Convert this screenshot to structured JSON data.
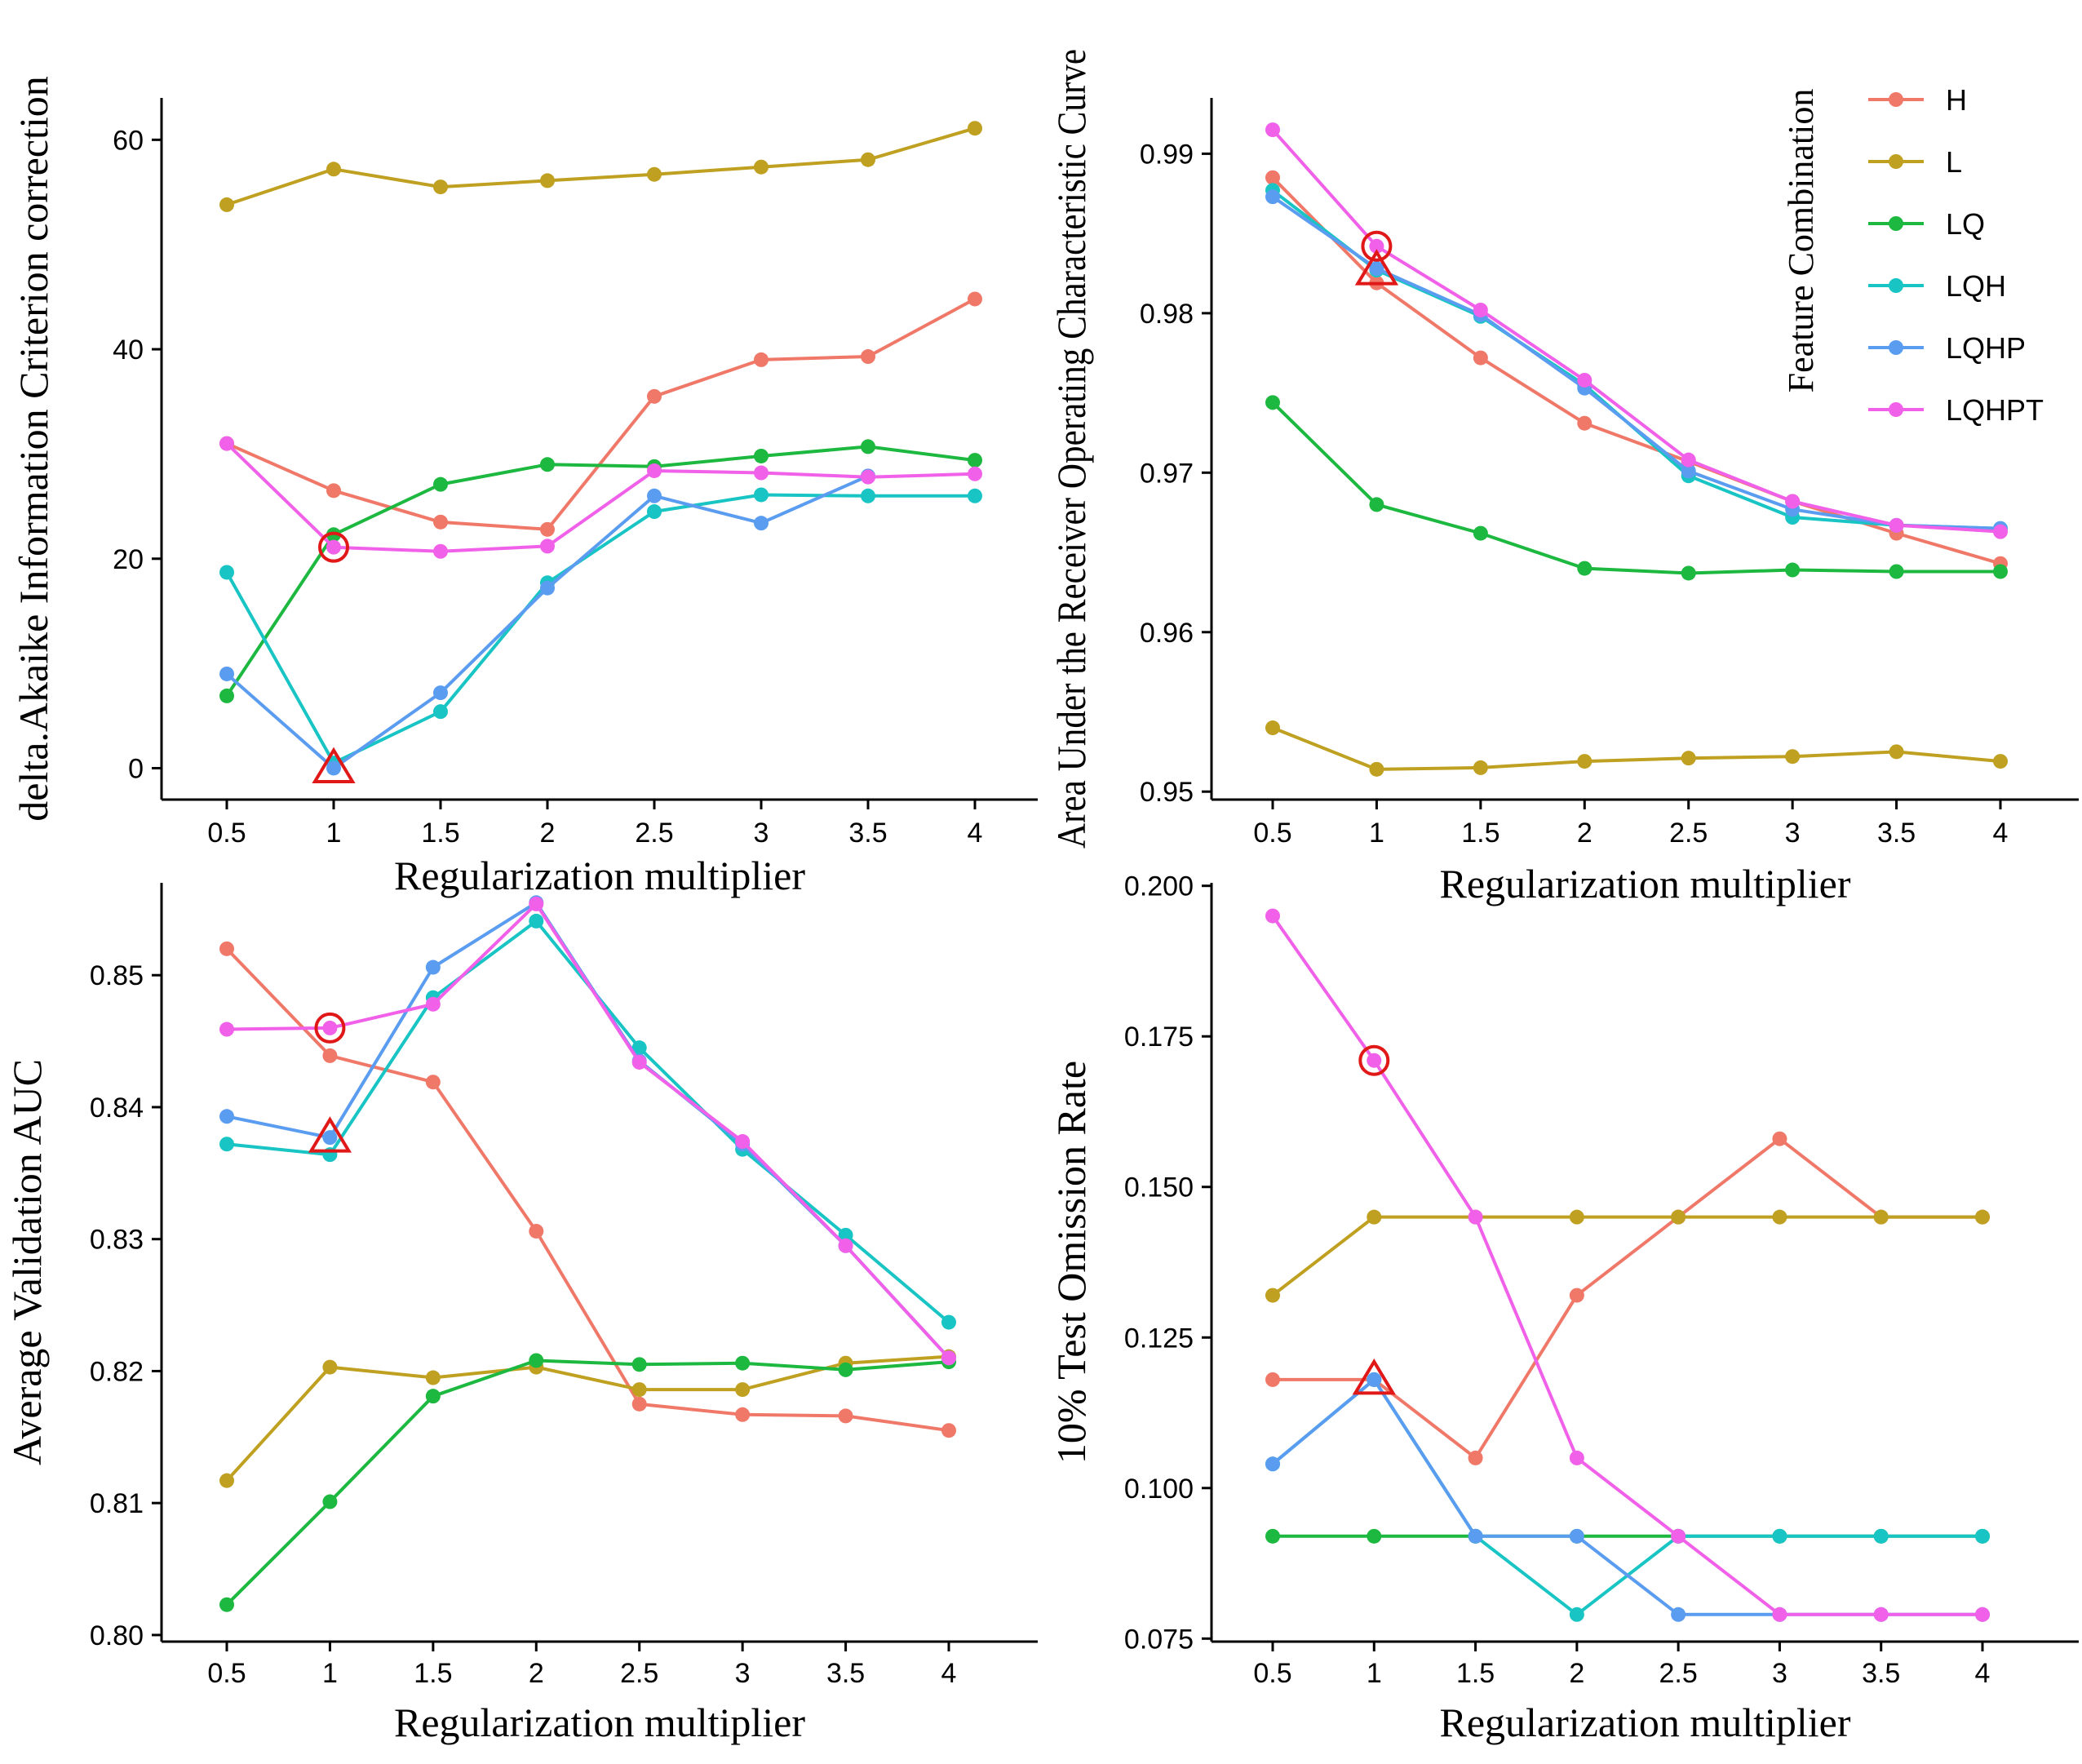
{
  "colors": {
    "H": "#F07868",
    "L": "#BFA020",
    "LQ": "#1DB840",
    "LQH": "#18C4C4",
    "LQHP": "#5A9CF0",
    "LQHPT": "#F060E8",
    "marker": "#E01818"
  },
  "legend": {
    "title": "Feature Combination",
    "entries": [
      "H",
      "L",
      "LQ",
      "LQH",
      "LQHP",
      "LQHPT"
    ]
  },
  "chart_data": [
    {
      "type": "line",
      "id": "aicc",
      "title": "",
      "xlabel": "Regularization multiplier",
      "ylabel": "delta.Akaike Information Criterion correction",
      "categories": [
        "0.5",
        "1",
        "1.5",
        "2",
        "2.5",
        "3",
        "3.5",
        "4"
      ],
      "x": [
        0.5,
        1,
        1.5,
        2,
        2.5,
        3,
        3.5,
        4
      ],
      "ylim": [
        -3,
        64
      ],
      "yticks": [
        0,
        20,
        40,
        60
      ],
      "ytick_labels": [
        "0",
        "20",
        "40",
        "60"
      ],
      "series": [
        {
          "name": "H",
          "values": [
            31,
            26.5,
            23.5,
            22.8,
            35.5,
            39,
            39.3,
            44.8
          ]
        },
        {
          "name": "L",
          "values": [
            53.8,
            57.2,
            55.5,
            56.1,
            56.7,
            57.4,
            58.1,
            61.1
          ]
        },
        {
          "name": "LQ",
          "values": [
            6.9,
            22.3,
            27.1,
            29,
            28.8,
            29.8,
            30.7,
            29.4
          ]
        },
        {
          "name": "LQH",
          "values": [
            18.7,
            0.5,
            5.4,
            17.7,
            24.5,
            26.1,
            26,
            26
          ]
        },
        {
          "name": "LQHP",
          "values": [
            9,
            0,
            7.2,
            17.2,
            26,
            23.4,
            27.9,
            null
          ]
        },
        {
          "name": "LQHPT",
          "values": [
            31,
            21.1,
            20.7,
            21.2,
            28.4,
            28.2,
            27.8,
            28.1
          ]
        }
      ],
      "markers": [
        {
          "shape": "circle",
          "x": 1,
          "y": 21.1
        },
        {
          "shape": "triangle",
          "x": 1,
          "y": 0
        }
      ]
    },
    {
      "type": "line",
      "id": "auc-train",
      "title": "",
      "xlabel": "Regularization multiplier",
      "ylabel": "Area Under the Receiver Operating Characteristic Curve",
      "categories": [
        "0.5",
        "1",
        "1.5",
        "2",
        "2.5",
        "3",
        "3.5",
        "4"
      ],
      "x": [
        0.5,
        1,
        1.5,
        2,
        2.5,
        3,
        3.5,
        4
      ],
      "ylim": [
        0.9495,
        0.9935
      ],
      "yticks": [
        0.95,
        0.96,
        0.97,
        0.98,
        0.99
      ],
      "ytick_labels": [
        "0.95",
        "0.96",
        "0.97",
        "0.98",
        "0.99"
      ],
      "series": [
        {
          "name": "H",
          "values": [
            0.9885,
            0.9819,
            0.9772,
            0.9731,
            0.9707,
            0.9682,
            0.9662,
            0.9643
          ]
        },
        {
          "name": "L",
          "values": [
            0.954,
            0.9514,
            0.9515,
            0.9519,
            0.9521,
            0.9522,
            0.9525,
            0.9519
          ]
        },
        {
          "name": "LQ",
          "values": [
            0.9744,
            0.968,
            0.9662,
            0.964,
            0.9637,
            0.9639,
            0.9638,
            0.9638
          ]
        },
        {
          "name": "LQH",
          "values": [
            0.9877,
            0.9827,
            0.9798,
            0.9755,
            0.9698,
            0.9672,
            0.9667,
            0.9665
          ]
        },
        {
          "name": "LQHP",
          "values": [
            0.9873,
            0.9828,
            0.9799,
            0.9753,
            0.9701,
            0.9677,
            0.9667,
            0.9665
          ]
        },
        {
          "name": "LQHPT",
          "values": [
            0.9915,
            0.9842,
            0.9802,
            0.9758,
            0.9708,
            0.9682,
            0.9667,
            0.9663
          ]
        }
      ],
      "markers": [
        {
          "shape": "circle",
          "x": 1,
          "y": 0.9842
        },
        {
          "shape": "triangle",
          "x": 1,
          "y": 0.9827
        }
      ]
    },
    {
      "type": "line",
      "id": "auc-val",
      "title": "",
      "xlabel": "Regularization multiplier",
      "ylabel": "Average Validation AUC",
      "categories": [
        "0.5",
        "1",
        "1.5",
        "2",
        "2.5",
        "3",
        "3.5",
        "4"
      ],
      "x": [
        0.5,
        1,
        1.5,
        2,
        2.5,
        3,
        3.5,
        4
      ],
      "ylim": [
        0.7995,
        0.857
      ],
      "yticks": [
        0.8,
        0.81,
        0.82,
        0.83,
        0.84,
        0.85
      ],
      "ytick_labels": [
        "0.80",
        "0.81",
        "0.82",
        "0.83",
        "0.84",
        "0.85"
      ],
      "series": [
        {
          "name": "H",
          "values": [
            0.852,
            0.8439,
            0.8419,
            0.8306,
            0.8175,
            0.8167,
            0.8166,
            0.8155
          ]
        },
        {
          "name": "L",
          "values": [
            0.8117,
            0.8203,
            0.8195,
            0.8203,
            0.8186,
            0.8186,
            0.8206,
            0.8211
          ]
        },
        {
          "name": "LQ",
          "values": [
            0.8023,
            0.8101,
            0.8181,
            0.8208,
            0.8205,
            0.8206,
            0.8201,
            0.8207
          ]
        },
        {
          "name": "LQH",
          "values": [
            0.8372,
            0.8364,
            0.8483,
            0.8541,
            0.8445,
            0.8368,
            0.8303,
            0.8237
          ]
        },
        {
          "name": "LQHP",
          "values": [
            0.8393,
            0.8377,
            0.8506,
            0.8555,
            0.8435,
            0.8372,
            0.8295,
            0.821
          ]
        },
        {
          "name": "LQHPT",
          "values": [
            0.8459,
            0.846,
            0.8478,
            0.8554,
            0.8434,
            0.8374,
            0.8295,
            0.821
          ]
        }
      ],
      "markers": [
        {
          "shape": "circle",
          "x": 1,
          "y": 0.846
        },
        {
          "shape": "triangle",
          "x": 1,
          "y": 0.8377
        }
      ]
    },
    {
      "type": "line",
      "id": "omission",
      "title": "",
      "xlabel": "Regularization multiplier",
      "ylabel": "10% Test Omission Rate",
      "categories": [
        "0.5",
        "1",
        "1.5",
        "2",
        "2.5",
        "3",
        "3.5",
        "4"
      ],
      "x": [
        0.5,
        1,
        1.5,
        2,
        2.5,
        3,
        3.5,
        4
      ],
      "ylim": [
        0.0745,
        0.2005
      ],
      "yticks": [
        0.075,
        0.1,
        0.125,
        0.15,
        0.175,
        0.2
      ],
      "ytick_labels": [
        "0.075",
        "0.100",
        "0.125",
        "0.150",
        "0.175",
        "0.200"
      ],
      "series": [
        {
          "name": "H",
          "values": [
            0.118,
            0.118,
            0.105,
            0.132,
            0.145,
            0.158,
            0.145,
            0.145
          ]
        },
        {
          "name": "L",
          "values": [
            0.132,
            0.145,
            0.145,
            0.145,
            0.145,
            0.145,
            0.145,
            0.145
          ]
        },
        {
          "name": "LQ",
          "values": [
            0.092,
            0.092,
            0.092,
            0.092,
            0.092,
            0.092,
            0.092,
            0.092
          ]
        },
        {
          "name": "LQH",
          "values": [
            0.104,
            0.118,
            0.092,
            0.079,
            0.092,
            0.092,
            0.092,
            0.092
          ]
        },
        {
          "name": "LQHP",
          "values": [
            0.104,
            0.118,
            0.092,
            0.092,
            0.079,
            0.079,
            0.079,
            0.079
          ]
        },
        {
          "name": "LQHPT",
          "values": [
            0.195,
            0.171,
            0.145,
            0.105,
            0.092,
            0.079,
            0.079,
            0.079
          ]
        }
      ],
      "markers": [
        {
          "shape": "circle",
          "x": 1,
          "y": 0.171
        },
        {
          "shape": "triangle",
          "x": 1,
          "y": 0.118
        }
      ]
    }
  ]
}
